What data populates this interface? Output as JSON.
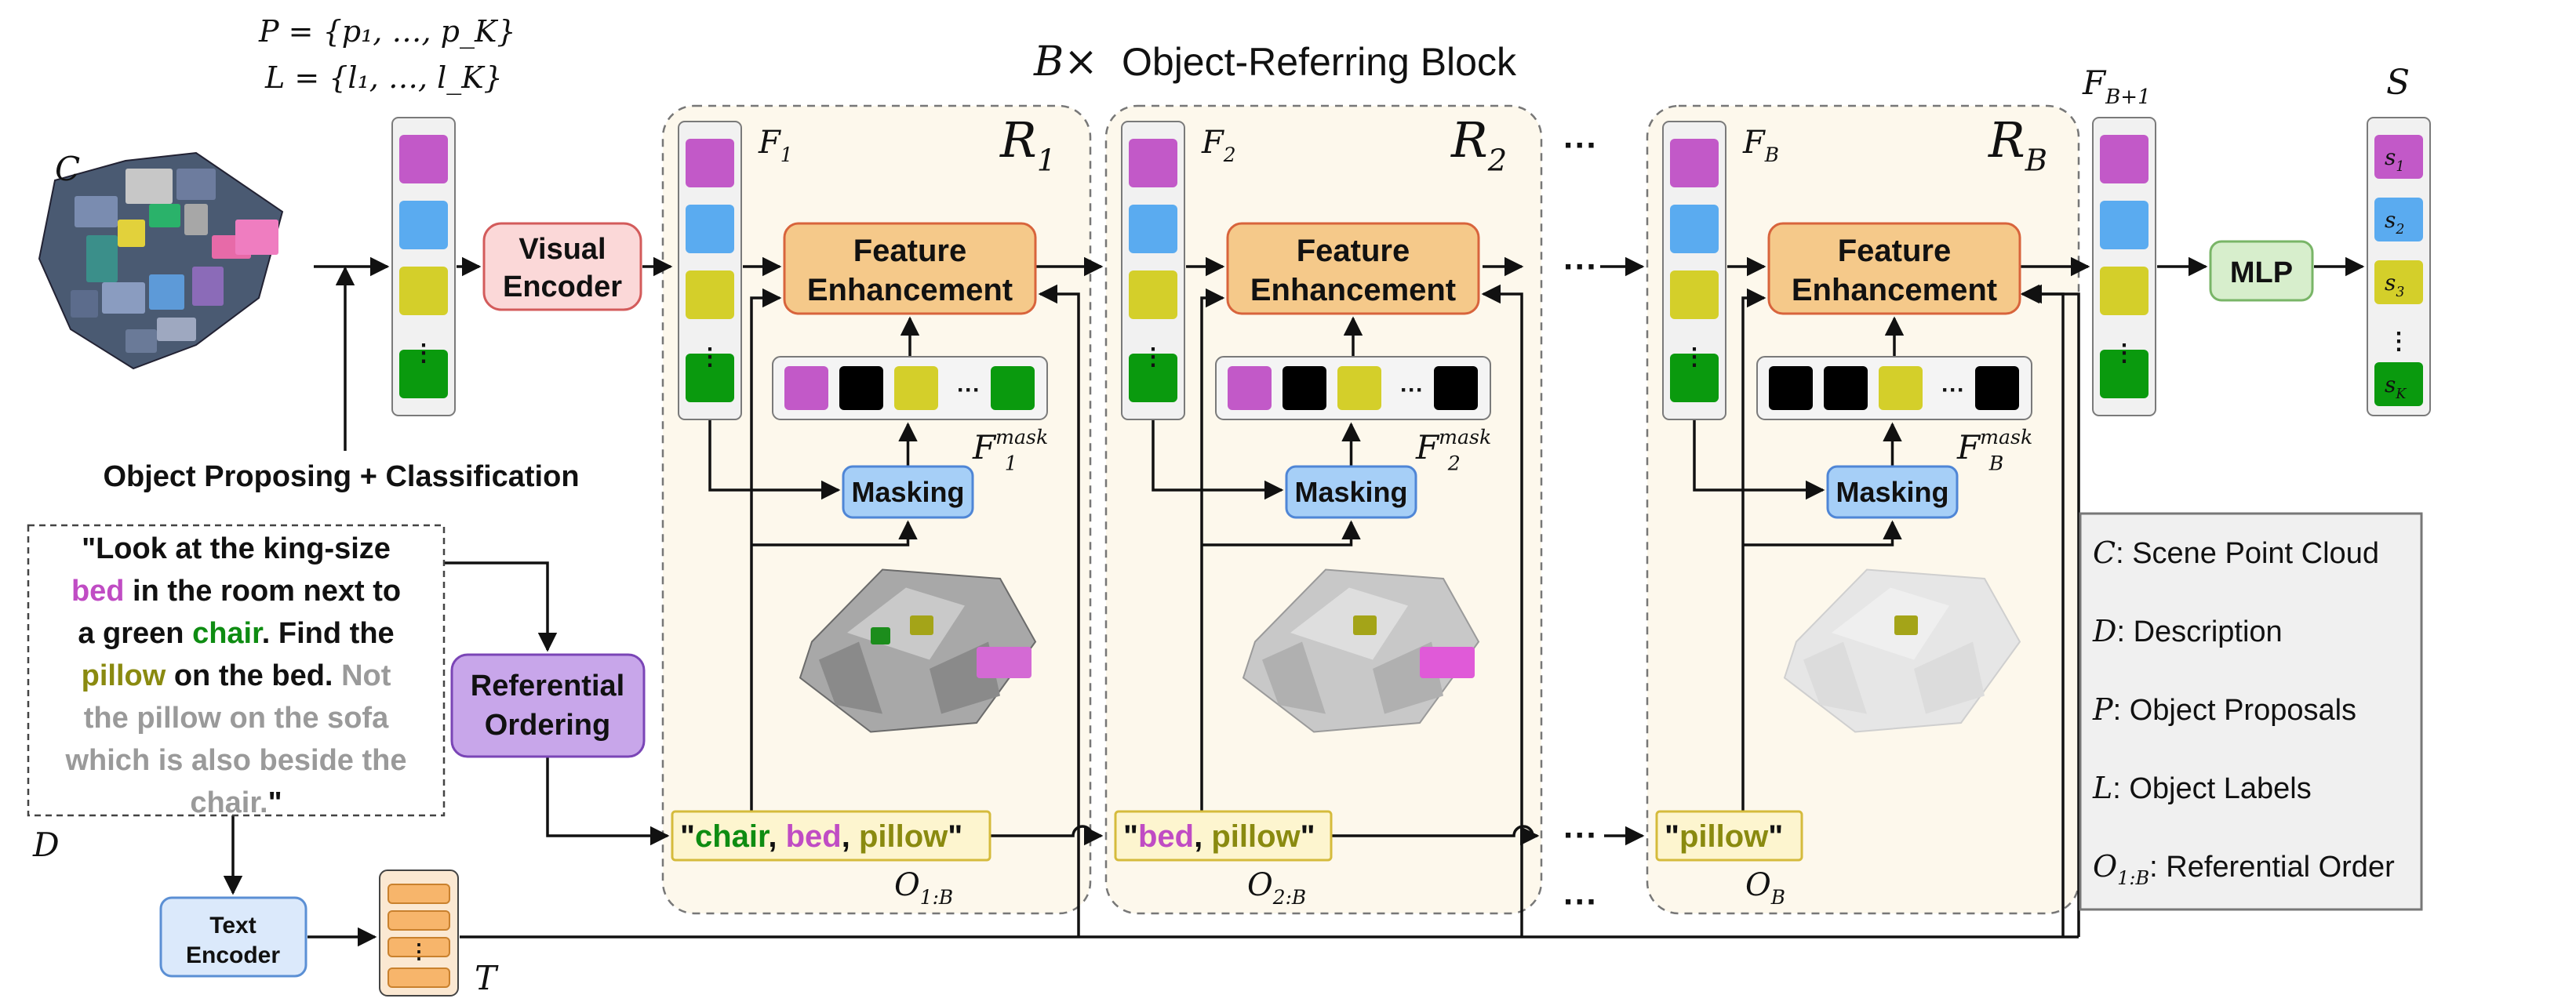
{
  "title": {
    "prefix": "B×",
    "text": "Object-Referring Block"
  },
  "input": {
    "scene_label": "C",
    "proposals_eq": "P = {p₁, …, p_K}",
    "labels_eq": "L = {l₁, …, l_K}",
    "proposing_caption": "Object Proposing + Classification"
  },
  "visual_encoder": {
    "line1": "Visual",
    "line2": "Encoder"
  },
  "description": {
    "label": "D",
    "lines": [
      [
        {
          "t": "\"Look at the king-size",
          "c": "dark"
        }
      ],
      [
        {
          "t": "bed",
          "c": "magenta"
        },
        {
          "t": " in the room next to",
          "c": "dark"
        }
      ],
      [
        {
          "t": "a green ",
          "c": "dark"
        },
        {
          "t": "chair",
          "c": "green"
        },
        {
          "t": ". Find the",
          "c": "dark"
        }
      ],
      [
        {
          "t": "pillow",
          "c": "olive"
        },
        {
          "t": " on the bed. ",
          "c": "dark"
        },
        {
          "t": "Not",
          "c": "gray"
        }
      ],
      [
        {
          "t": "the pillow on the sofa",
          "c": "gray"
        }
      ],
      [
        {
          "t": "which is also beside the",
          "c": "gray"
        }
      ],
      [
        {
          "t": "chair.",
          "c": "gray"
        },
        {
          "t": "\"",
          "c": "dark"
        }
      ]
    ]
  },
  "referential_ordering": {
    "line1": "Referential",
    "line2": "Ordering"
  },
  "text_encoder": {
    "line1": "Text",
    "line2": "Encoder",
    "output_label": "T"
  },
  "blocks": [
    {
      "R": "R",
      "R_sub": "1",
      "F": "F",
      "F_sub": "1",
      "mask_label": "F",
      "mask_sub": "1",
      "mask_sup": "mask",
      "fe_line1": "Feature",
      "fe_line2": "Enhancement",
      "masking": "Masking",
      "mask_colors": [
        "#c259c8",
        "#000000",
        "#d4cf2a",
        "#0a9a0e"
      ],
      "order_words": [
        {
          "t": "\"",
          "c": "dark"
        },
        {
          "t": "chair",
          "c": "green"
        },
        {
          "t": ", ",
          "c": "dark"
        },
        {
          "t": "bed",
          "c": "magenta"
        },
        {
          "t": ", ",
          "c": "dark"
        },
        {
          "t": "pillow",
          "c": "olive"
        },
        {
          "t": "\"",
          "c": "dark"
        }
      ],
      "O": "O",
      "O_sub": "1:B"
    },
    {
      "R": "R",
      "R_sub": "2",
      "F": "F",
      "F_sub": "2",
      "mask_label": "F",
      "mask_sub": "2",
      "mask_sup": "mask",
      "fe_line1": "Feature",
      "fe_line2": "Enhancement",
      "masking": "Masking",
      "mask_colors": [
        "#c259c8",
        "#000000",
        "#d4cf2a",
        "#000000"
      ],
      "order_words": [
        {
          "t": "\"",
          "c": "dark"
        },
        {
          "t": "bed",
          "c": "magenta"
        },
        {
          "t": ", ",
          "c": "dark"
        },
        {
          "t": "pillow",
          "c": "olive"
        },
        {
          "t": "\"",
          "c": "dark"
        }
      ],
      "O": "O",
      "O_sub": "2:B"
    },
    {
      "R": "R",
      "R_sub": "B",
      "F": "F",
      "F_sub": "B",
      "mask_label": "F",
      "mask_sub": "B",
      "mask_sup": "mask",
      "fe_line1": "Feature",
      "fe_line2": "Enhancement",
      "masking": "Masking",
      "mask_colors": [
        "#000000",
        "#000000",
        "#d4cf2a",
        "#000000"
      ],
      "order_words": [
        {
          "t": "\"",
          "c": "dark"
        },
        {
          "t": "pillow",
          "c": "olive"
        },
        {
          "t": "\"",
          "c": "dark"
        }
      ],
      "O": "O",
      "O_sub": "B"
    }
  ],
  "ellipsis": "···",
  "output_features": {
    "F": "F",
    "sub": "B+1"
  },
  "mlp": "MLP",
  "scores": {
    "label": "S",
    "items": [
      {
        "s": "s",
        "sub": "1",
        "color": "#c259c8"
      },
      {
        "s": "s",
        "sub": "2",
        "color": "#5aabf0"
      },
      {
        "s": "s",
        "sub": "3",
        "color": "#d4cf2a"
      },
      {
        "s": "s",
        "sub": "K",
        "color": "#0a9a0e"
      }
    ]
  },
  "feature_colors": [
    "#c259c8",
    "#5aabf0",
    "#d4cf2a",
    "#0a9a0e"
  ],
  "legend": [
    {
      "sym": "C",
      "sub": "",
      "text": ": Scene Point Cloud"
    },
    {
      "sym": "D",
      "sub": "",
      "text": ": Description"
    },
    {
      "sym": "P",
      "sub": "",
      "text": ": Object Proposals"
    },
    {
      "sym": "L",
      "sub": "",
      "text": ": Object Labels"
    },
    {
      "sym": "O",
      "sub": "1:B",
      "text": ": Referential Order"
    }
  ],
  "colors": {
    "dark": "#111111",
    "magenta": "#c04cc4",
    "green": "#0e8c12",
    "olive": "#8a8a10",
    "gray": "#9a9a9a",
    "block_bg": "#fdf8ec",
    "fe_fill": "#f5c98a",
    "fe_stroke": "#d8643c",
    "mask_fill": "#a6cff7",
    "mask_stroke": "#4f86d6",
    "ve_fill": "#fbd8d8",
    "ve_stroke": "#d35b5b",
    "ro_fill": "#c8a6ea",
    "ro_stroke": "#7a45b6",
    "mlp_fill": "#d7eecc",
    "mlp_stroke": "#79b567",
    "te_fill": "#dbe9fb",
    "te_stroke": "#5b8fd4",
    "order_fill": "#fdf5cf",
    "order_stroke": "#d5bb3c"
  }
}
